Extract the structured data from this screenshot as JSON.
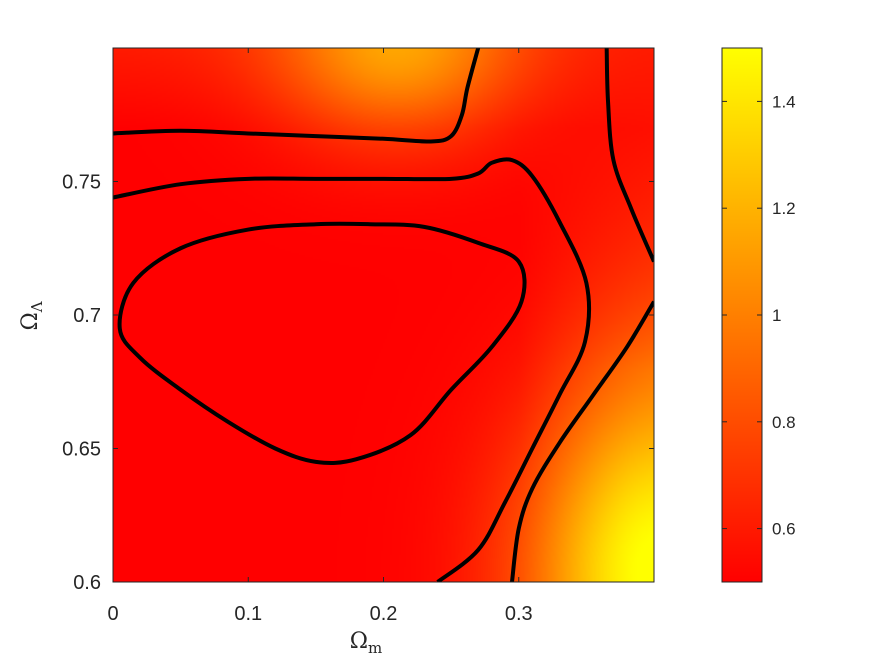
{
  "chart_data": {
    "type": "heatmap",
    "colormap": "autumn",
    "colors": {
      "low": "#ff0000",
      "high": "#ffff00",
      "contour": "#000000",
      "frame": "#262626"
    },
    "xlabel": "Ω",
    "xlabel_sub": "m",
    "ylabel": "Ω",
    "ylabel_sub": "Λ",
    "xlim": [
      0,
      0.4
    ],
    "ylim": [
      0.6,
      0.8
    ],
    "xticks": [
      0,
      0.1,
      0.2,
      0.3
    ],
    "xtick_labels": [
      "0",
      "0.1",
      "0.2",
      "0.3"
    ],
    "yticks": [
      0.6,
      0.65,
      0.7,
      0.75
    ],
    "ytick_labels": [
      "0.6",
      "0.65",
      "0.7",
      "0.75"
    ],
    "colorbar": {
      "range": [
        0.5,
        1.5
      ],
      "ticks": [
        0.6,
        0.8,
        1,
        1.2,
        1.4
      ],
      "tick_labels": [
        "0.6",
        "0.8",
        "1",
        "1.2",
        "1.4"
      ]
    },
    "field_peaks": [
      {
        "x": 0.21,
        "y": 0.8,
        "value": 1.05
      },
      {
        "x": 0.4,
        "y": 0.6,
        "value": 1.45
      }
    ],
    "contours": [
      {
        "name": "inner",
        "closed": true,
        "points": [
          [
            0.005,
            0.695
          ],
          [
            0.015,
            0.712
          ],
          [
            0.05,
            0.725
          ],
          [
            0.1,
            0.732
          ],
          [
            0.15,
            0.734
          ],
          [
            0.19,
            0.734
          ],
          [
            0.23,
            0.733
          ],
          [
            0.27,
            0.727
          ],
          [
            0.3,
            0.72
          ],
          [
            0.302,
            0.705
          ],
          [
            0.28,
            0.688
          ],
          [
            0.25,
            0.672
          ],
          [
            0.22,
            0.655
          ],
          [
            0.18,
            0.646
          ],
          [
            0.15,
            0.645
          ],
          [
            0.12,
            0.65
          ],
          [
            0.085,
            0.66
          ],
          [
            0.05,
            0.672
          ],
          [
            0.02,
            0.684
          ]
        ]
      },
      {
        "name": "middle",
        "closed": false,
        "points": [
          [
            0,
            0.744
          ],
          [
            0.05,
            0.749
          ],
          [
            0.1,
            0.751
          ],
          [
            0.15,
            0.751
          ],
          [
            0.2,
            0.751
          ],
          [
            0.25,
            0.751
          ],
          [
            0.27,
            0.753
          ],
          [
            0.28,
            0.757
          ],
          [
            0.295,
            0.758
          ],
          [
            0.31,
            0.752
          ],
          [
            0.33,
            0.735
          ],
          [
            0.35,
            0.712
          ],
          [
            0.349,
            0.69
          ],
          [
            0.33,
            0.67
          ],
          [
            0.31,
            0.65
          ],
          [
            0.29,
            0.63
          ],
          [
            0.27,
            0.612
          ],
          [
            0.24,
            0.6
          ]
        ]
      },
      {
        "name": "upper-left",
        "closed": false,
        "points": [
          [
            0,
            0.768
          ],
          [
            0.05,
            0.769
          ],
          [
            0.1,
            0.768
          ],
          [
            0.15,
            0.767
          ],
          [
            0.2,
            0.766
          ],
          [
            0.235,
            0.765
          ],
          [
            0.25,
            0.767
          ],
          [
            0.258,
            0.775
          ],
          [
            0.262,
            0.785
          ],
          [
            0.27,
            0.8
          ]
        ]
      },
      {
        "name": "right",
        "closed": false,
        "points": [
          [
            0.365,
            0.8
          ],
          [
            0.366,
            0.78
          ],
          [
            0.37,
            0.758
          ],
          [
            0.383,
            0.74
          ],
          [
            0.4,
            0.72
          ]
        ]
      },
      {
        "name": "lower-right",
        "closed": false,
        "points": [
          [
            0.295,
            0.6
          ],
          [
            0.3,
            0.62
          ],
          [
            0.31,
            0.635
          ],
          [
            0.33,
            0.652
          ],
          [
            0.355,
            0.67
          ],
          [
            0.38,
            0.688
          ],
          [
            0.4,
            0.705
          ]
        ]
      }
    ]
  }
}
